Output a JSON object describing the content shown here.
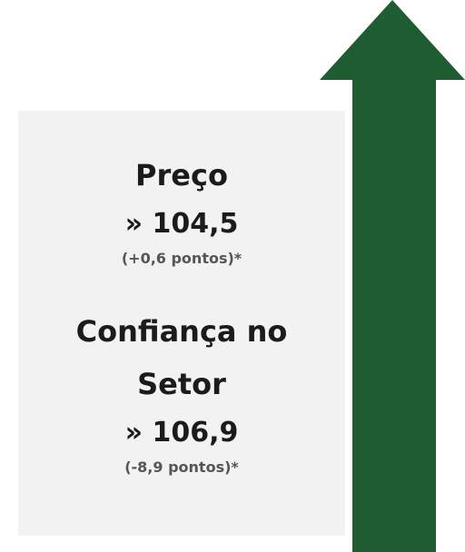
{
  "items": [
    {
      "label": "Preço",
      "value": "» 104,5",
      "change": "(+0,6 pontos)*"
    },
    {
      "label": "Confiança no Setor",
      "value": "» 106,9",
      "change": "(-8,9 pontos)*"
    }
  ]
}
